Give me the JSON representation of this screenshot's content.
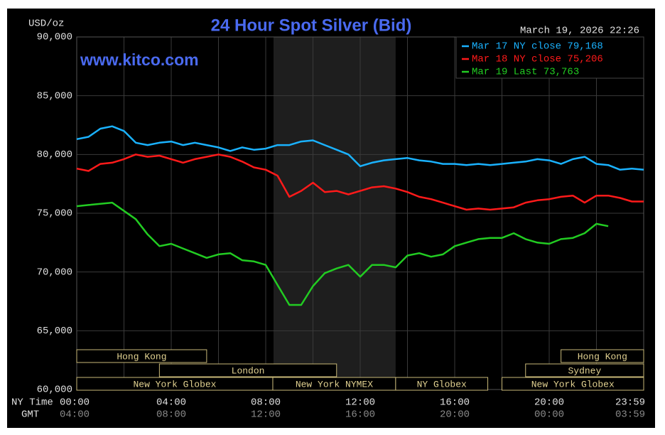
{
  "chart_data": {
    "type": "line",
    "title": "24 Hour Spot Silver (Bid)",
    "unit_label": "USD/oz",
    "timestamp": "March 19, 2026 22:26",
    "watermark": "www.kitco.com",
    "x_axis_label": "NY Time",
    "x2_axis_label": "GMT",
    "x": [
      0,
      0.5,
      1,
      1.5,
      2,
      2.5,
      3,
      3.5,
      4,
      4.5,
      5,
      5.5,
      6,
      6.5,
      7,
      7.5,
      8,
      8.5,
      9,
      9.5,
      10,
      10.5,
      11,
      11.5,
      12,
      12.5,
      13,
      13.5,
      14,
      14.5,
      15,
      15.5,
      16,
      16.5,
      17,
      17.5,
      18,
      18.5,
      19,
      19.5,
      20,
      20.5,
      21,
      21.5,
      22,
      22.5,
      23,
      23.5,
      24
    ],
    "xlim": [
      0,
      24
    ],
    "xticks": [
      {
        "value": 0,
        "label": "00:00"
      },
      {
        "value": 4,
        "label": "04:00"
      },
      {
        "value": 8,
        "label": "08:00"
      },
      {
        "value": 12,
        "label": "12:00"
      },
      {
        "value": 16,
        "label": "16:00"
      },
      {
        "value": 20,
        "label": "20:00"
      },
      {
        "value": 24,
        "label": "23:59"
      }
    ],
    "x2ticklabels": [
      "04:00",
      "08:00",
      "12:00",
      "16:00",
      "20:00",
      "00:00",
      "03:59"
    ],
    "minor_xticks": [
      2,
      6,
      10,
      14,
      18,
      22
    ],
    "ylim": [
      60000,
      90000
    ],
    "yticks": [
      {
        "value": 60000,
        "label": "60,000"
      },
      {
        "value": 65000,
        "label": "65,000"
      },
      {
        "value": 70000,
        "label": "70,000"
      },
      {
        "value": 75000,
        "label": "75,000"
      },
      {
        "value": 80000,
        "label": "80,000"
      },
      {
        "value": 85000,
        "label": "85,000"
      },
      {
        "value": 90000,
        "label": "90,000"
      }
    ],
    "grid": true,
    "shaded_span": [
      8.33,
      13.5
    ],
    "legend": "top-right",
    "series": [
      {
        "name": "Mar 17 NY close 79,168",
        "color": "#1ab2ff",
        "values": [
          81300,
          81500,
          82200,
          82400,
          82000,
          81000,
          80800,
          81000,
          81100,
          80800,
          81000,
          80800,
          80600,
          80300,
          80600,
          80400,
          80500,
          80800,
          80800,
          81100,
          81200,
          80800,
          80400,
          80000,
          79000,
          79300,
          79500,
          79600,
          79700,
          79500,
          79400,
          79200,
          79200,
          79100,
          79200,
          79100,
          79200,
          79300,
          79400,
          79600,
          79500,
          79200,
          79600,
          79800,
          79200,
          79100,
          78700,
          78800,
          78700
        ]
      },
      {
        "name": "Mar 18 NY close 75,206",
        "color": "#ff1a1a",
        "values": [
          78800,
          78600,
          79200,
          79300,
          79600,
          80000,
          79800,
          79900,
          79600,
          79300,
          79600,
          79800,
          80000,
          79800,
          79400,
          78900,
          78700,
          78200,
          76400,
          76900,
          77600,
          76800,
          76900,
          76600,
          76900,
          77200,
          77300,
          77100,
          76800,
          76400,
          76200,
          75900,
          75600,
          75300,
          75400,
          75300,
          75400,
          75500,
          75900,
          76100,
          76200,
          76400,
          76500,
          75900,
          76500,
          76500,
          76300,
          76000,
          76000
        ]
      },
      {
        "name": "Mar 19 Last 73,763",
        "color": "#22cc22",
        "values": [
          75600,
          75700,
          75800,
          75900,
          75200,
          74500,
          73200,
          72200,
          72400,
          72000,
          71600,
          71200,
          71500,
          71600,
          71000,
          70900,
          70600,
          68900,
          67200,
          67200,
          68800,
          69900,
          70300,
          70600,
          69600,
          70600,
          70600,
          70400,
          71400,
          71600,
          71300,
          71500,
          72200,
          72500,
          72800,
          72900,
          72900,
          73300,
          72800,
          72500,
          72400,
          72800,
          72900,
          73300,
          74100,
          73900,
          null,
          null,
          null
        ]
      }
    ],
    "sessions": [
      {
        "label": "Hong Kong",
        "row": 0,
        "start": 0,
        "end": 5.5
      },
      {
        "label": "Hong Kong",
        "row": 0,
        "start": 20.5,
        "end": 24
      },
      {
        "label": "London",
        "row": 1,
        "start": 3.5,
        "end": 11
      },
      {
        "label": "Sydney",
        "row": 1,
        "start": 19,
        "end": 24
      },
      {
        "label": "New York Globex",
        "row": 2,
        "start": 0,
        "end": 8.3
      },
      {
        "label": "New York NYMEX",
        "row": 2,
        "start": 8.3,
        "end": 13.5
      },
      {
        "label": "NY Globex",
        "row": 2,
        "start": 13.5,
        "end": 17.4
      },
      {
        "label": "New York Globex",
        "row": 2,
        "start": 18,
        "end": 24
      }
    ]
  }
}
